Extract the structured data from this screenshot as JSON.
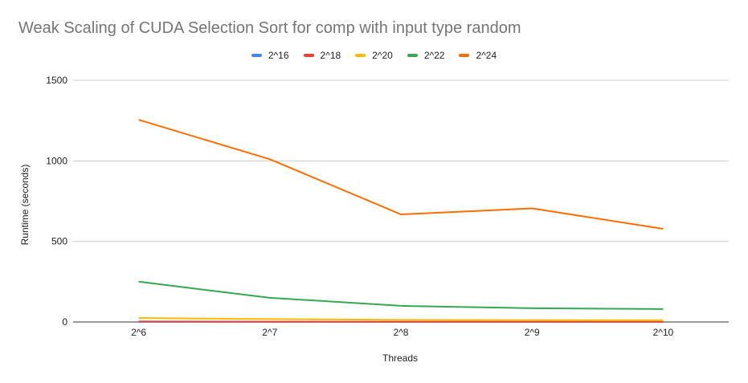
{
  "chart_data": {
    "type": "line",
    "title": "Weak Scaling of CUDA Selection Sort for comp with input type random",
    "xlabel": "Threads",
    "ylabel": "Runtime (seconds)",
    "categories": [
      "2^6",
      "2^7",
      "2^8",
      "2^9",
      "2^10"
    ],
    "ylim": [
      0,
      1500
    ],
    "yticks": [
      0,
      500,
      1000,
      1500
    ],
    "grid": true,
    "legend_position": "top",
    "series": [
      {
        "name": "2^16",
        "color": "#4285F4",
        "values": [
          0.5,
          0.4,
          0.3,
          0.3,
          0.3
        ]
      },
      {
        "name": "2^18",
        "color": "#EA4335",
        "values": [
          3,
          2,
          1.5,
          1.2,
          1
        ]
      },
      {
        "name": "2^20",
        "color": "#FBBC04",
        "values": [
          25,
          18,
          13,
          12,
          11
        ]
      },
      {
        "name": "2^22",
        "color": "#34A853",
        "values": [
          250,
          150,
          100,
          85,
          80
        ]
      },
      {
        "name": "2^24",
        "color": "#FF6D01",
        "values": [
          1255,
          1010,
          668,
          705,
          578
        ]
      }
    ]
  }
}
